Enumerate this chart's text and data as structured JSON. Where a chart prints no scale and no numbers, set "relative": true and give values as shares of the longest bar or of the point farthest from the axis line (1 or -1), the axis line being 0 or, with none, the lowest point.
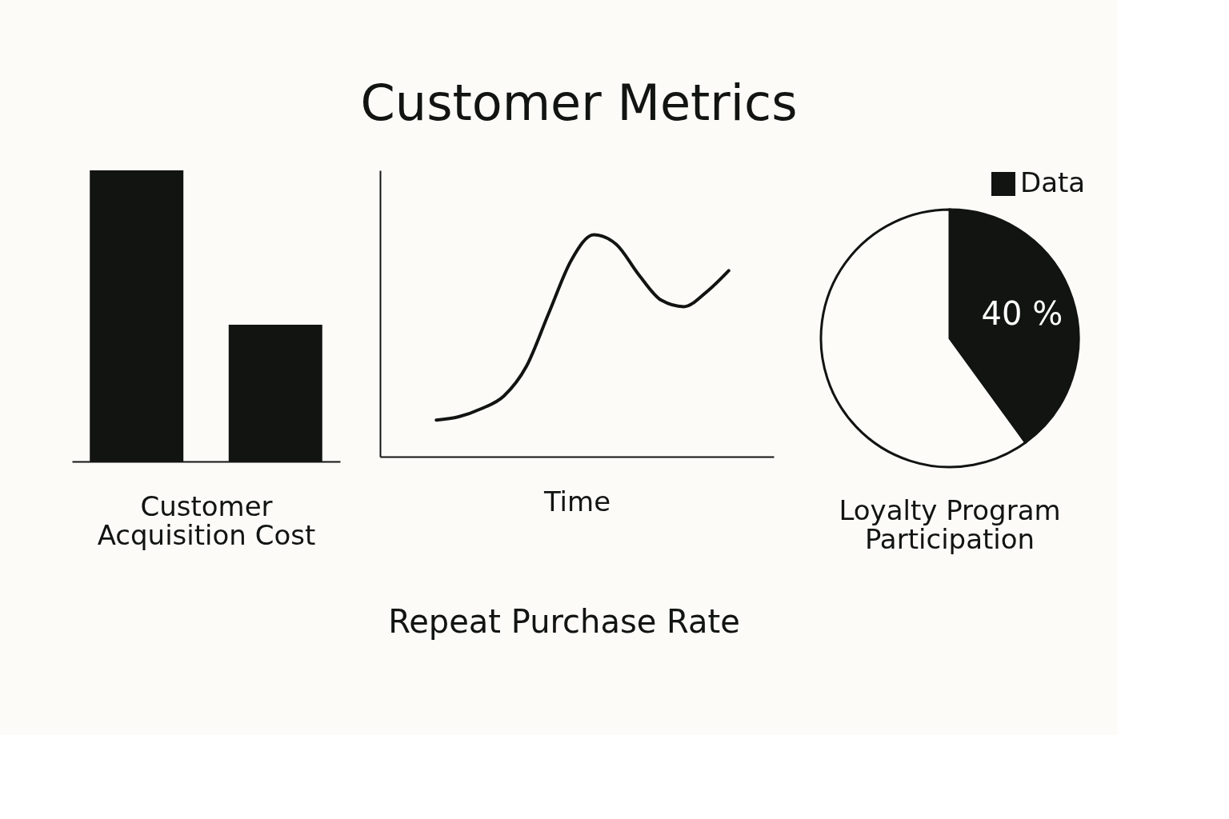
{
  "chart_data": [
    {
      "type": "bar",
      "title": "Customer Metrics",
      "relative": true,
      "categories": [
        null,
        null
      ],
      "values": [
        1,
        0.47
      ],
      "color": "#121412",
      "xlabel": "Customer Acquisition Cost",
      "tick_labels": false
    },
    {
      "type": "line",
      "relative": true,
      "categories": [
        null,
        null,
        null,
        null,
        null,
        null,
        null,
        null,
        null,
        null,
        null,
        null,
        null,
        null
      ],
      "values": [
        0.165,
        0.18,
        0.216,
        0.273,
        0.406,
        0.647,
        0.885,
        1,
        0.957,
        0.82,
        0.705,
        0.676,
        0.741,
        0.838
      ],
      "color": "#121412",
      "xlabel": "Time",
      "annotations": [
        "Repeat Purchase Rate"
      ],
      "tick_labels": false,
      "grid": false,
      "marker": "none",
      "line_style": "solid"
    },
    {
      "type": "pie",
      "categories": [
        "Data",
        null
      ],
      "values": [
        40,
        60
      ],
      "colors": [
        "#121412",
        "#fdfcf8"
      ],
      "value_labels": [
        "40 %",
        null
      ],
      "xlabel": "Loyalty Program Participation",
      "legend": "top right"
    }
  ]
}
